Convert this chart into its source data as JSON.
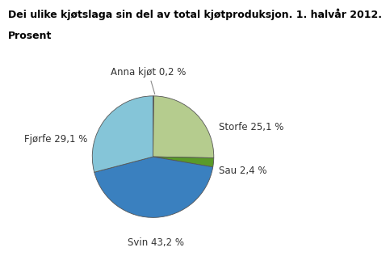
{
  "title_line1": "Dei ulike kjøtslaga sin del av total kjøtproduksjon. 1. halvår 2012.",
  "title_line2": "Prosent",
  "labels": [
    "Anna kjøt",
    "Storfe",
    "Sau",
    "Svin",
    "Fjørfe"
  ],
  "values": [
    0.2,
    25.1,
    2.4,
    43.2,
    29.1
  ],
  "colors": [
    "#7a3b10",
    "#b5cc8e",
    "#5a9a28",
    "#3a80bf",
    "#85c5d8"
  ],
  "background": "#ffffff",
  "title_fontsize": 9,
  "label_fontsize": 8.5
}
